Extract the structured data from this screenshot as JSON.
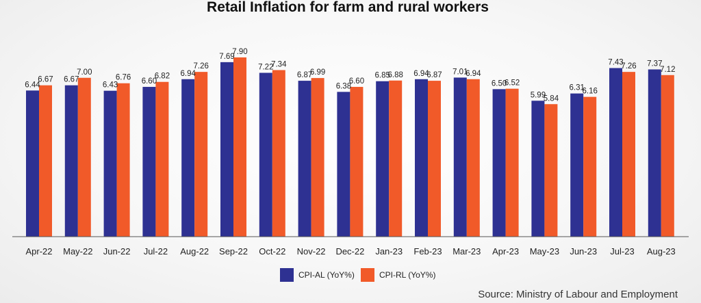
{
  "chart_data": {
    "type": "bar",
    "title": "Retail Inflation for farm and rural workers",
    "xlabel": "",
    "ylabel": "",
    "ylim": [
      0,
      8.5
    ],
    "grid": false,
    "legend_position": "bottom-center",
    "categories": [
      "Apr-22",
      "May-22",
      "Jun-22",
      "Jul-22",
      "Aug-22",
      "Sep-22",
      "Oct-22",
      "Nov-22",
      "Dec-22",
      "Jan-23",
      "Feb-23",
      "Mar-23",
      "Apr-23",
      "May-23",
      "Jun-23",
      "Jul-23",
      "Aug-23"
    ],
    "series": [
      {
        "name": "CPI-AL (YoY%)",
        "color": "#2e3192",
        "values": [
          6.44,
          6.67,
          6.43,
          6.6,
          6.94,
          7.69,
          7.22,
          6.87,
          6.38,
          6.85,
          6.94,
          7.01,
          6.5,
          5.99,
          6.31,
          7.43,
          7.37
        ],
        "labels": [
          "6.44",
          "6.67",
          "6.43",
          "6.60",
          "6.94",
          "7.69",
          "7.22",
          "6.87",
          "6.38",
          "6.85",
          "6.94",
          "7.01",
          "6.50",
          "5.99",
          "6.31",
          "7.43",
          "7.37"
        ]
      },
      {
        "name": "CPI-RL (YoY%)",
        "color": "#f15a29",
        "values": [
          6.67,
          7.0,
          6.76,
          6.82,
          7.26,
          7.9,
          7.34,
          6.99,
          6.6,
          6.88,
          6.87,
          6.94,
          6.52,
          5.84,
          6.16,
          7.26,
          7.12
        ],
        "labels": [
          "6.67",
          "7.00",
          "6.76",
          "6.82",
          "7.26",
          "7.90",
          "7.34",
          "6.99",
          "6.60",
          "6.88",
          "6.87",
          "6.94",
          "6.52",
          "5.84",
          "6.16",
          "7.26",
          "7.12"
        ]
      }
    ],
    "source": "Source: Ministry of Labour and Employment"
  }
}
